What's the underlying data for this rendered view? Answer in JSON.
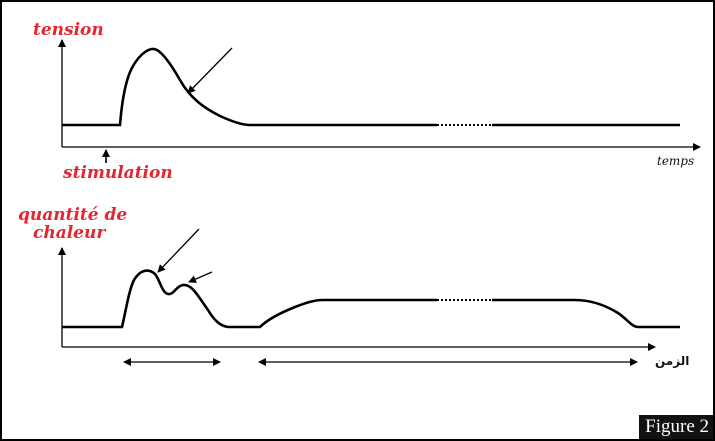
{
  "top_graph": {
    "ylabel": "tension",
    "xlabel": "temps",
    "stimulus_label": "stimulation"
  },
  "bottom_graph": {
    "ylabel_line1": "quantité de",
    "ylabel_line2": "chaleur",
    "xlabel": "الزمن"
  },
  "figure_label": "Figure 2",
  "colors": {
    "label_red": "#e3262f",
    "ink": "#000000"
  }
}
